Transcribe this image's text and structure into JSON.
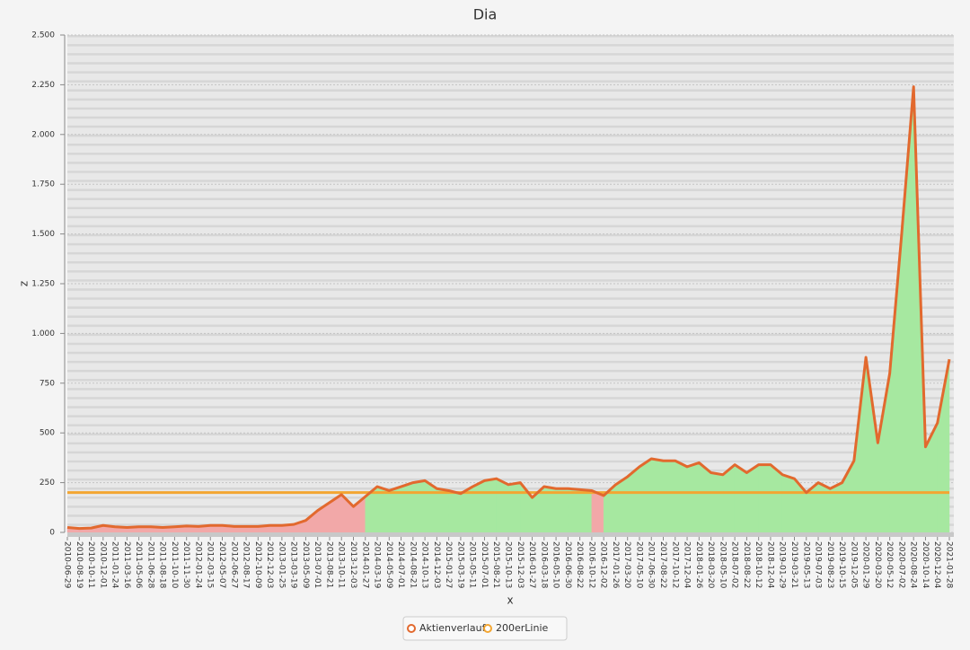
{
  "chart_data": {
    "type": "line",
    "title": "Dia",
    "x_label": "x",
    "y_label": "z",
    "categories": [
      "2010-06-29",
      "2010-08-19",
      "2010-10-11",
      "2010-12-01",
      "2011-01-24",
      "2011-03-16",
      "2011-05-06",
      "2011-06-28",
      "2011-08-18",
      "2011-10-10",
      "2011-11-30",
      "2012-01-24",
      "2012-03-15",
      "2012-05-07",
      "2012-06-27",
      "2012-08-17",
      "2012-10-09",
      "2012-12-03",
      "2013-01-25",
      "2013-03-19",
      "2013-05-09",
      "2013-07-01",
      "2013-08-21",
      "2013-10-11",
      "2013-12-03",
      "2014-01-27",
      "2014-03-19",
      "2014-05-09",
      "2014-07-01",
      "2014-08-21",
      "2014-10-13",
      "2014-12-03",
      "2015-01-27",
      "2015-03-19",
      "2015-05-11",
      "2015-07-01",
      "2015-08-21",
      "2015-10-13",
      "2015-12-03",
      "2016-01-27",
      "2016-03-18",
      "2016-05-10",
      "2016-06-30",
      "2016-08-22",
      "2016-10-12",
      "2016-12-02",
      "2017-01-26",
      "2017-03-20",
      "2017-05-10",
      "2017-06-30",
      "2017-08-22",
      "2017-10-12",
      "2017-12-04",
      "2018-01-26",
      "2018-03-20",
      "2018-05-10",
      "2018-07-02",
      "2018-08-22",
      "2018-10-12",
      "2018-12-04",
      "2019-01-29",
      "2019-03-21",
      "2019-05-13",
      "2019-07-03",
      "2019-08-23",
      "2019-10-15",
      "2019-12-05",
      "2020-01-29",
      "2020-03-20",
      "2020-05-12",
      "2020-07-02",
      "2020-08-24",
      "2020-10-14",
      "2020-12-04",
      "2021-01-28"
    ],
    "series": [
      {
        "name": "Aktienverlauf",
        "color": "#e2692e",
        "values": [
          25,
          20,
          22,
          35,
          28,
          25,
          28,
          28,
          25,
          28,
          32,
          30,
          35,
          35,
          30,
          30,
          30,
          35,
          35,
          40,
          60,
          110,
          150,
          190,
          130,
          180,
          230,
          210,
          230,
          250,
          260,
          220,
          210,
          195,
          230,
          260,
          270,
          240,
          250,
          175,
          230,
          220,
          220,
          215,
          210,
          185,
          240,
          280,
          330,
          370,
          360,
          360,
          330,
          350,
          300,
          290,
          340,
          300,
          340,
          340,
          290,
          270,
          200,
          250,
          220,
          250,
          360,
          880,
          450,
          800,
          1500,
          2240,
          430,
          550,
          870
        ]
      },
      {
        "name": "200erLinie",
        "color": "#f3a632",
        "values": [
          200,
          200,
          200,
          200,
          200,
          200,
          200,
          200,
          200,
          200,
          200,
          200,
          200,
          200,
          200,
          200,
          200,
          200,
          200,
          200,
          200,
          200,
          200,
          200,
          200,
          200,
          200,
          200,
          200,
          200,
          200,
          200,
          200,
          200,
          200,
          200,
          200,
          200,
          200,
          200,
          200,
          200,
          200,
          200,
          200,
          200,
          200,
          200,
          200,
          200,
          200,
          200,
          200,
          200,
          200,
          200,
          200,
          200,
          200,
          200,
          200,
          200,
          200,
          200,
          200,
          200,
          200,
          200,
          200,
          200,
          200,
          200,
          200,
          200,
          200
        ]
      }
    ],
    "above_color": "#a6e8a0",
    "below_color": "#f2a8a8",
    "ylim": [
      0,
      2500
    ],
    "yticks": [
      0,
      250,
      500,
      750,
      {
        "value": 1000,
        "label": "1.000"
      },
      {
        "value": 1250,
        "label": "1.250"
      },
      {
        "value": 1500,
        "label": "1.500"
      },
      {
        "value": 1750,
        "label": "1.750"
      },
      {
        "value": 2000,
        "label": "2.000"
      },
      {
        "value": 2250,
        "label": "2.250"
      },
      {
        "value": 2500,
        "label": "2.500"
      }
    ],
    "grid": true,
    "legend": "bottom"
  }
}
